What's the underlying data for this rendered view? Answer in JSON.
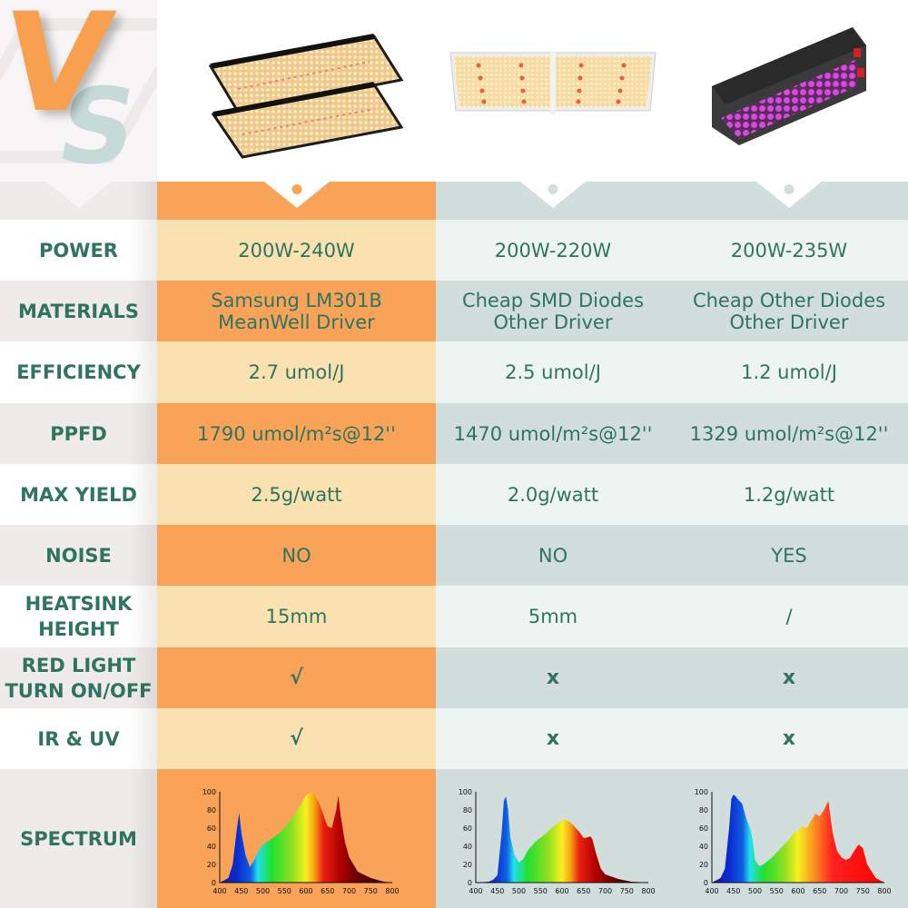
{
  "logo": {
    "v": "V",
    "s": "S"
  },
  "colors": {
    "text_green": "#2e7461",
    "orange": "#f8a358",
    "orange_light": "#f9e1b0",
    "grey_green": "#d2dedb",
    "grey_green_light": "#eef4f1",
    "label_light": "#ffffff",
    "label_dark": "#efebeb"
  },
  "products": [
    {
      "name": "Featured quantum board (2 panels)",
      "image": "quantum-board-pair"
    },
    {
      "name": "SMD panel competitor",
      "image": "smd-panel"
    },
    {
      "name": "Blurple LED competitor",
      "image": "blurple-box-light"
    }
  ],
  "rows": [
    {
      "label": "POWER",
      "values": [
        "200W-240W",
        "200W-220W",
        "200W-235W"
      ]
    },
    {
      "label": "MATERIALS",
      "values": [
        "Samsung LM301B\nMeanWell Driver",
        "Cheap SMD Diodes\nOther Driver",
        "Cheap Other Diodes\nOther Driver"
      ]
    },
    {
      "label": "EFFICIENCY",
      "values": [
        "2.7 umol/J",
        "2.5 umol/J",
        "1.2 umol/J"
      ]
    },
    {
      "label": "PPFD",
      "values": [
        "1790 umol/m²s@12''",
        "1470 umol/m²s@12''",
        "1329 umol/m²s@12''"
      ]
    },
    {
      "label": "MAX YIELD",
      "values": [
        "2.5g/watt",
        "2.0g/watt",
        "1.2g/watt"
      ]
    },
    {
      "label": "NOISE",
      "values": [
        "NO",
        "NO",
        "YES"
      ]
    },
    {
      "label": "HEATSINK\nHEIGHT",
      "values": [
        "15mm",
        "5mm",
        "/"
      ]
    },
    {
      "label": "RED LIGHT\nTURN ON/OFF",
      "values": [
        "√",
        "x",
        "x"
      ]
    },
    {
      "label": "IR &  UV",
      "values": [
        "√",
        "x",
        "x"
      ]
    },
    {
      "label": "SPECTRUM",
      "values": [
        "",
        "",
        ""
      ]
    }
  ],
  "chart_data": [
    {
      "type": "area",
      "title": "Spectrum - featured quantum board",
      "xlabel": "",
      "ylabel": "",
      "x_ticks": [
        400,
        450,
        500,
        550,
        600,
        650,
        700,
        750,
        800
      ],
      "y_ticks": [
        0,
        20,
        40,
        60,
        80,
        100
      ],
      "xlim": [
        400,
        800
      ],
      "ylim": [
        0,
        100
      ],
      "x": [
        400,
        420,
        430,
        440,
        445,
        450,
        460,
        470,
        480,
        490,
        500,
        520,
        540,
        560,
        580,
        600,
        610,
        620,
        630,
        640,
        650,
        660,
        670,
        675,
        680,
        690,
        700,
        720,
        750,
        780,
        800
      ],
      "values": [
        0,
        5,
        20,
        60,
        77,
        55,
        30,
        17,
        25,
        35,
        42,
        48,
        55,
        66,
        80,
        96,
        99,
        97,
        88,
        75,
        62,
        60,
        80,
        96,
        75,
        45,
        28,
        12,
        5,
        1,
        0
      ]
    },
    {
      "type": "area",
      "title": "Spectrum - SMD panel",
      "x_ticks": [
        400,
        450,
        500,
        550,
        600,
        650,
        700,
        750,
        800
      ],
      "y_ticks": [
        0,
        20,
        40,
        60,
        80,
        100
      ],
      "xlim": [
        400,
        800
      ],
      "ylim": [
        0,
        100
      ],
      "x": [
        400,
        430,
        440,
        450,
        460,
        465,
        470,
        475,
        480,
        490,
        500,
        510,
        520,
        540,
        560,
        580,
        600,
        610,
        620,
        640,
        650,
        660,
        665,
        670,
        680,
        690,
        700,
        730,
        760,
        800
      ],
      "values": [
        0,
        1,
        3,
        8,
        55,
        90,
        95,
        80,
        50,
        30,
        22,
        26,
        35,
        46,
        53,
        62,
        69,
        69,
        66,
        56,
        49,
        50,
        51,
        48,
        30,
        15,
        9,
        4,
        1,
        0
      ]
    },
    {
      "type": "area",
      "title": "Spectrum - blurple LED",
      "x_ticks": [
        400,
        450,
        500,
        550,
        600,
        650,
        700,
        750,
        800
      ],
      "y_ticks": [
        0,
        20,
        40,
        60,
        80,
        100
      ],
      "xlim": [
        400,
        800
      ],
      "ylim": [
        0,
        100
      ],
      "x": [
        400,
        420,
        430,
        440,
        445,
        450,
        455,
        460,
        470,
        480,
        490,
        495,
        500,
        510,
        520,
        540,
        560,
        580,
        590,
        600,
        610,
        620,
        630,
        640,
        650,
        660,
        670,
        680,
        690,
        700,
        710,
        720,
        730,
        740,
        750,
        760,
        780,
        800
      ],
      "values": [
        0,
        5,
        15,
        60,
        92,
        97,
        95,
        92,
        87,
        70,
        58,
        45,
        25,
        18,
        20,
        28,
        38,
        48,
        55,
        57,
        62,
        60,
        68,
        76,
        73,
        80,
        90,
        55,
        35,
        28,
        25,
        27,
        35,
        42,
        38,
        20,
        5,
        0
      ]
    }
  ]
}
